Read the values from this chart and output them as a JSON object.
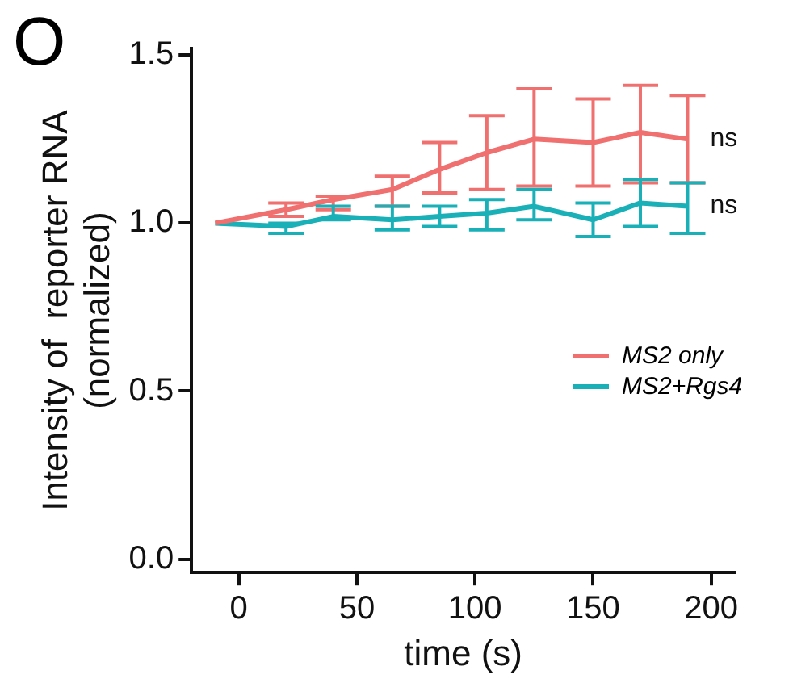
{
  "chart_data": {
    "type": "line",
    "xlabel": "time (s)",
    "ylabel": "Intensity of  reporter RNA\n(normalized)",
    "x": [
      -10,
      20,
      40,
      65,
      85,
      105,
      125,
      150,
      170,
      190
    ],
    "xlim": [
      -20,
      210
    ],
    "xticks": [
      0,
      50,
      100,
      150,
      200
    ],
    "ylim": [
      -0.04,
      1.52
    ],
    "yticks": [
      {
        "value": 0,
        "label": "0.0"
      },
      {
        "value": 0.5,
        "label": "0.5"
      },
      {
        "value": 1,
        "label": "1.0"
      },
      {
        "value": 1.5,
        "label": "1.5"
      }
    ],
    "series": [
      {
        "name": "MS2 only",
        "color": "#f07070",
        "values": [
          1.0,
          1.04,
          1.07,
          1.1,
          1.16,
          1.21,
          1.25,
          1.24,
          1.27,
          1.25
        ],
        "errors": [
          null,
          [
            1.02,
            1.06
          ],
          [
            1.04,
            1.08
          ],
          [
            1.05,
            1.14
          ],
          [
            1.09,
            1.24
          ],
          [
            1.1,
            1.32
          ],
          [
            1.11,
            1.4
          ],
          [
            1.11,
            1.37
          ],
          [
            1.12,
            1.41
          ],
          [
            1.12,
            1.38
          ]
        ]
      },
      {
        "name": "MS2+Rgs4",
        "color": "#1ab0b8",
        "values": [
          1.0,
          0.99,
          1.02,
          1.01,
          1.02,
          1.03,
          1.05,
          1.01,
          1.06,
          1.05
        ],
        "errors": [
          null,
          [
            0.97,
            1.0
          ],
          [
            1.01,
            1.05
          ],
          [
            0.98,
            1.05
          ],
          [
            0.99,
            1.05
          ],
          [
            0.98,
            1.07
          ],
          [
            1.01,
            1.1
          ],
          [
            0.96,
            1.06
          ],
          [
            0.99,
            1.13
          ],
          [
            0.97,
            1.12
          ]
        ]
      }
    ],
    "annotations": [
      "O",
      {
        "text": "ns",
        "x": 190,
        "y": 1.25
      },
      {
        "text": "ns",
        "x": 190,
        "y": 1.05
      }
    ],
    "legend": "right",
    "grid": false,
    "marker": "none",
    "line_style": "solid"
  }
}
